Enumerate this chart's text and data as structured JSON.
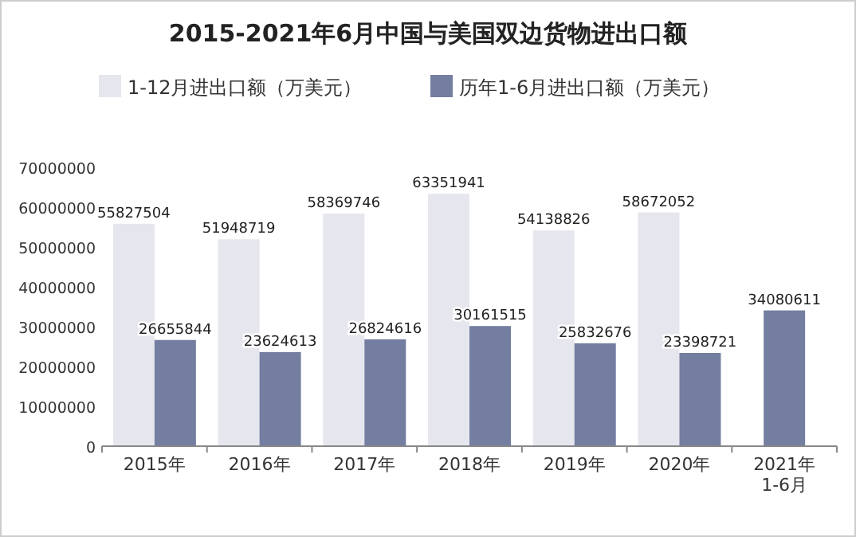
{
  "chart_data": {
    "type": "bar",
    "title": "2015-2021年6月中国与美国双边货物进出口额",
    "categories": [
      "2015年",
      "2016年",
      "2017年",
      "2018年",
      "2019年",
      "2020年",
      "2021年\n1-6月"
    ],
    "series": [
      {
        "name": "1-12月进出口额（万美元）",
        "color": "#e6e6ee",
        "values": [
          55827504,
          51948719,
          58369746,
          63351941,
          54138826,
          58672052,
          null
        ]
      },
      {
        "name": "历年1-6月进出口额（万美元）",
        "color": "#747ea0",
        "values": [
          26655844,
          23624613,
          26824616,
          30161515,
          25832676,
          23398721,
          34080611
        ]
      }
    ],
    "ylim": [
      0,
      70000000
    ],
    "yticks": [
      0,
      10000000,
      20000000,
      30000000,
      40000000,
      50000000,
      60000000,
      70000000
    ],
    "data_labels": true,
    "legend": "top left",
    "grid": false
  }
}
